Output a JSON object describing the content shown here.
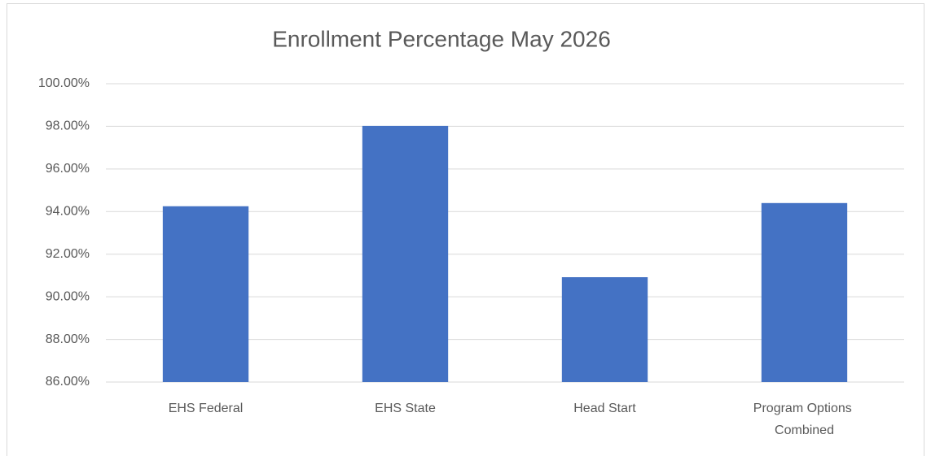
{
  "chart_data": {
    "type": "bar",
    "title": "Enrollment Percentage May 2026",
    "categories": [
      "EHS Federal",
      "EHS State",
      "Head Start",
      "Program Options Combined"
    ],
    "values": [
      94.25,
      98.02,
      90.92,
      94.4
    ],
    "color": "#4472c4",
    "ylim": [
      86,
      100
    ],
    "yticks": [
      {
        "value": 86,
        "label": "86.00%"
      },
      {
        "value": 88,
        "label": "88.00%"
      },
      {
        "value": 90,
        "label": "90.00%"
      },
      {
        "value": 92,
        "label": "92.00%"
      },
      {
        "value": 94,
        "label": "94.00%"
      },
      {
        "value": 96,
        "label": "96.00%"
      },
      {
        "value": 98,
        "label": "98.00%"
      },
      {
        "value": 100,
        "label": "100.00%"
      }
    ],
    "grid": true
  }
}
